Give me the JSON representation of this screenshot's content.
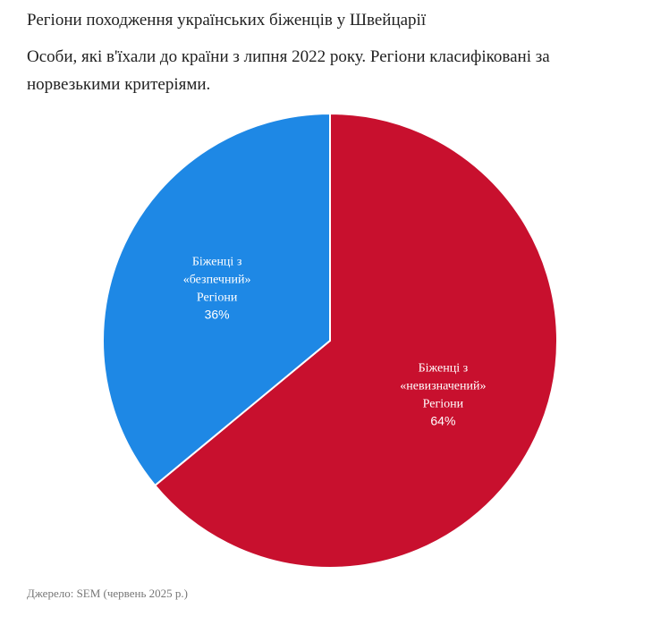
{
  "chart_data": {
    "type": "pie",
    "title": "Регіони походження українських біженців у Швейцарії",
    "subtitle": "Особи, які в'їхали до країни з липня 2022 року. Регіони класифіковані за норвезькими критеріями.",
    "slices": [
      {
        "name": "Біженці з «невизначений» Регіони",
        "label_lines": [
          "Біженці з",
          "«невизначений»",
          "Регіони"
        ],
        "value": 64,
        "value_label": "64%",
        "color": "#c8102e"
      },
      {
        "name": "Біженці з «безпечний» Регіони",
        "label_lines": [
          "Біженці з",
          "«безпечний»",
          "Регіони"
        ],
        "value": 36,
        "value_label": "36%",
        "color": "#1e88e5"
      }
    ],
    "start_angle": "12 o'clock",
    "direction": "clockwise",
    "legend": "none"
  },
  "source": "Джерело: SEM (червень 2025 р.)"
}
